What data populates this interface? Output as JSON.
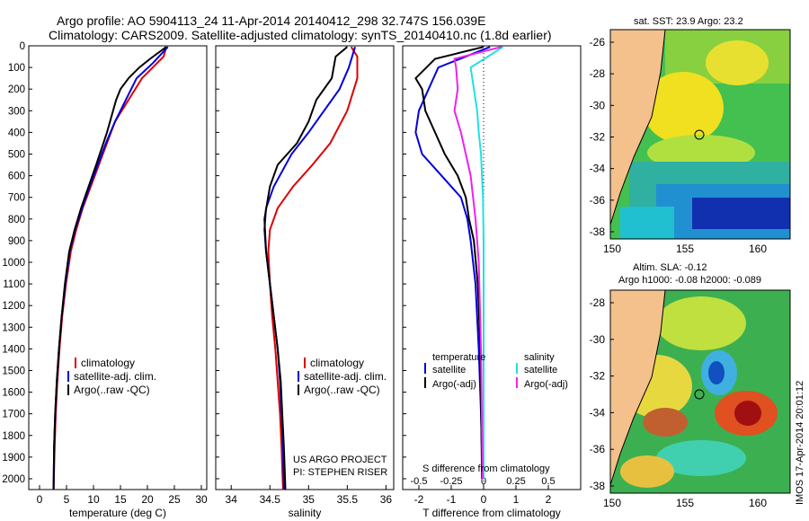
{
  "header": {
    "line1": "Argo profile: AO 5904113_24 11-Apr-2014 20140412_298 32.747S 156.039E",
    "line2": "Climatology: CARS2009. Satellite-adjusted climatology: synTS_20140410.nc (1.8d earlier)"
  },
  "colors": {
    "climatology": "#dd0000",
    "satellite": "#0000dd",
    "argo": "#000000",
    "sal_sat": "#22e0e0",
    "sal_argo": "#ee22ee",
    "land": "#f4c08c"
  },
  "depth_ticks": [
    "0",
    "100",
    "200",
    "300",
    "400",
    "500",
    "600",
    "700",
    "800",
    "900",
    "1000",
    "1100",
    "1200",
    "1300",
    "1400",
    "1500",
    "1600",
    "1700",
    "1800",
    "1900",
    "2000"
  ],
  "chart_data": [
    {
      "type": "line",
      "xlabel": "temperature (deg C)",
      "xlim": [
        -2,
        31
      ],
      "ylim": [
        2050,
        0
      ],
      "xticks": [
        "0",
        "5",
        "10",
        "15",
        "20",
        "25",
        "30"
      ],
      "xtick_values": [
        0,
        5,
        10,
        15,
        20,
        25,
        30
      ],
      "legend": [
        "climatology",
        "satellite-adj. clim.",
        "Argo(..raw -QC)"
      ],
      "series": [
        {
          "name": "climatology",
          "color": "#dd0000",
          "x": [
            23.5,
            23,
            21,
            19,
            16.5,
            14,
            12.5,
            11,
            9.5,
            8,
            6.8,
            5.8,
            4.9,
            4.2,
            3.7,
            3.3,
            3,
            2.8,
            2.6
          ],
          "y": [
            5,
            50,
            100,
            150,
            250,
            350,
            450,
            550,
            650,
            750,
            850,
            950,
            1100,
            1250,
            1400,
            1550,
            1700,
            1850,
            2050
          ]
        },
        {
          "name": "satellite-adj. clim.",
          "color": "#0000dd",
          "x": [
            23.8,
            21,
            18,
            16,
            14,
            12.3,
            10.8,
            9.3,
            7.9,
            6.6,
            5.6,
            4.8,
            4.1,
            3.6,
            3.2,
            2.9,
            2.7,
            2.6
          ],
          "y": [
            5,
            80,
            150,
            250,
            350,
            450,
            550,
            650,
            750,
            850,
            950,
            1100,
            1250,
            1400,
            1550,
            1700,
            1850,
            2050
          ]
        },
        {
          "name": "Argo(..raw -QC)",
          "color": "#000000",
          "x": [
            23.5,
            20.5,
            18.5,
            16.5,
            15,
            14.2,
            12.5,
            10.5,
            9.1,
            7.7,
            6.5,
            5.5,
            4.7,
            4.1,
            3.6,
            3.2,
            2.9,
            2.7,
            2.6
          ],
          "y": [
            5,
            60,
            100,
            150,
            200,
            250,
            400,
            550,
            650,
            750,
            850,
            950,
            1100,
            1250,
            1400,
            1550,
            1700,
            1850,
            2050
          ]
        }
      ]
    },
    {
      "type": "line",
      "xlabel": "salinity",
      "xlim": [
        33.8,
        36.1
      ],
      "ylim": [
        2050,
        0
      ],
      "xticks": [
        "34",
        "34.5",
        "35",
        "35.5",
        "36"
      ],
      "xtick_values": [
        34,
        34.5,
        35,
        35.5,
        36
      ],
      "legend": [
        "climatology",
        "satellite-adj. clim.",
        "Argo(..raw -QC)"
      ],
      "annotations": [
        "US ARGO PROJECT",
        "PI: STEPHEN RISER"
      ],
      "series": [
        {
          "name": "climatology",
          "color": "#dd0000",
          "x": [
            35.55,
            35.63,
            35.63,
            35.5,
            35.28,
            35.05,
            34.8,
            34.6,
            34.5,
            34.48,
            34.5,
            34.53,
            34.57,
            34.6,
            34.63,
            34.65,
            34.66,
            34.67
          ],
          "y": [
            5,
            50,
            150,
            300,
            450,
            550,
            650,
            750,
            850,
            950,
            1100,
            1250,
            1400,
            1550,
            1700,
            1850,
            1950,
            2050
          ]
        },
        {
          "name": "satellite-adj. clim.",
          "color": "#0000dd",
          "x": [
            35.6,
            35.52,
            35.4,
            35.2,
            35,
            34.78,
            34.55,
            34.45,
            34.43,
            34.45,
            34.5,
            34.55,
            34.6,
            34.63,
            34.65,
            34.67,
            34.68
          ],
          "y": [
            5,
            100,
            200,
            300,
            400,
            500,
            650,
            750,
            850,
            950,
            1100,
            1250,
            1400,
            1550,
            1700,
            1850,
            2050
          ]
        },
        {
          "name": "Argo(..raw -QC)",
          "color": "#000000",
          "x": [
            35.5,
            35.35,
            35.3,
            35.1,
            35,
            34.85,
            34.6,
            34.5,
            34.43,
            34.45,
            34.5,
            34.55,
            34.6,
            34.64,
            34.66,
            34.68,
            34.7
          ],
          "y": [
            5,
            50,
            150,
            250,
            350,
            450,
            550,
            650,
            800,
            950,
            1100,
            1250,
            1400,
            1550,
            1700,
            1850,
            2050
          ]
        }
      ]
    },
    {
      "type": "line",
      "xlabel": "T difference from climatology",
      "xlim": [
        -2.5,
        3
      ],
      "ylim": [
        2050,
        0
      ],
      "xticks": [
        "-2",
        "-1",
        "0",
        "1",
        "2"
      ],
      "xtick_values": [
        -2,
        -1,
        0,
        1,
        2
      ],
      "top_xlabel": "S difference from climatology",
      "top_xticks": [
        "-0.5",
        "-0.25",
        "0",
        "0.25",
        "0.5"
      ],
      "top_xtick_values": [
        -2,
        -1,
        0,
        1,
        2
      ],
      "legend_headers": [
        "temperature",
        "salinity"
      ],
      "legend": [
        "satellite",
        "Argo(-adj)",
        "satellite",
        "Argo(-adj)"
      ],
      "series": [
        {
          "name": "satellite",
          "color": "#0000dd",
          "x": [
            0.2,
            -1.4,
            -1.7,
            -2.0,
            -2.1,
            -1.9,
            -1.3,
            -0.7,
            -0.5,
            -0.4,
            -0.25,
            -0.15,
            -0.08,
            -0.03
          ],
          "y": [
            5,
            100,
            200,
            300,
            400,
            500,
            600,
            700,
            800,
            900,
            1100,
            1400,
            1700,
            2000
          ]
        },
        {
          "name": "Argo(-adj)",
          "color": "#000000",
          "x": [
            0,
            -1.5,
            -2.1,
            -1.9,
            -1.8,
            -1.5,
            -1.2,
            -0.8,
            -0.55,
            -0.45,
            -0.3,
            -0.18,
            -0.1,
            -0.05
          ],
          "y": [
            5,
            60,
            150,
            200,
            300,
            400,
            500,
            600,
            700,
            800,
            900,
            1100,
            1400,
            2000
          ]
        },
        {
          "name": "satellite",
          "color": "#22e0e0",
          "x": [
            0.6,
            -0.4,
            -0.3,
            -0.2,
            -0.15,
            -0.08,
            -0.02,
            0,
            0,
            0
          ],
          "y": [
            5,
            100,
            200,
            300,
            400,
            500,
            700,
            900,
            1400,
            2000
          ]
        },
        {
          "name": "Argo(-adj)",
          "color": "#ee22ee",
          "x": [
            0.55,
            -0.9,
            -0.85,
            -0.8,
            -0.9,
            -0.7,
            -0.4,
            -0.25,
            -0.15,
            -0.08,
            -0.03
          ],
          "y": [
            5,
            60,
            100,
            200,
            300,
            400,
            600,
            800,
            1000,
            1400,
            2000
          ]
        }
      ]
    },
    {
      "type": "heatmap",
      "title": "sat. SST: 23.9 Argo: 23.2",
      "xticks": [
        "150",
        "155",
        "160"
      ],
      "yticks": [
        "-26",
        "-28",
        "-30",
        "-32",
        "-34",
        "-36",
        "-38"
      ]
    },
    {
      "type": "heatmap",
      "title": "Altim. SLA: -0.12",
      "subtitle": "Argo h1000: -0.08 h2000: -0.089",
      "xticks": [
        "150",
        "155",
        "160"
      ],
      "yticks": [
        "-28",
        "-30",
        "-32",
        "-34",
        "-36",
        "-38"
      ],
      "side_label": "IMOS 17-Apr-2014 20:01:12"
    }
  ]
}
